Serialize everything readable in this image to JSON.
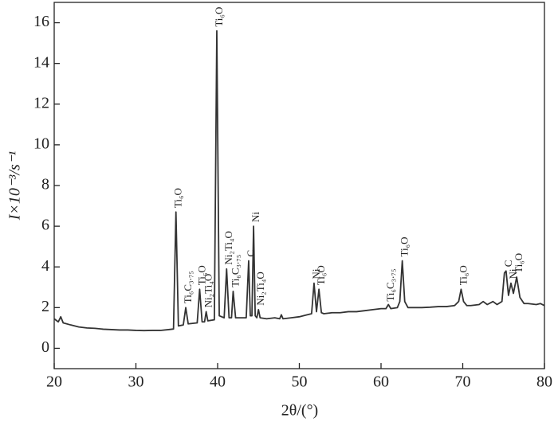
{
  "chart_data": {
    "type": "line",
    "xlabel": "2θ/(°)",
    "ylabel": "I×10⁻³/s⁻¹",
    "x": [
      20,
      20.5,
      20.8,
      21.1,
      22,
      23,
      24,
      25,
      26,
      27,
      28,
      29,
      30,
      31,
      32,
      33,
      34,
      34.6,
      34.9,
      35.2,
      35.8,
      36.1,
      36.4,
      37.5,
      37.8,
      38.1,
      38.4,
      38.6,
      38.8,
      39.6,
      39.9,
      40.2,
      40.8,
      41.1,
      41.4,
      41.7,
      41.9,
      42.2,
      43.5,
      43.8,
      44.0,
      44.2,
      44.4,
      44.6,
      44.8,
      45.0,
      45.2,
      46,
      47,
      47.6,
      47.8,
      48,
      49,
      50,
      51,
      51.5,
      51.8,
      52.1,
      52.4,
      52.7,
      53,
      54,
      55,
      56,
      57,
      58,
      59,
      60,
      60.6,
      60.9,
      61.2,
      62,
      62.3,
      62.6,
      62.9,
      63.3,
      64,
      65,
      66,
      67,
      68,
      69,
      69.5,
      69.8,
      70.1,
      70.5,
      71,
      72,
      72.5,
      73,
      73.7,
      74.2,
      74.8,
      75.1,
      75.3,
      75.6,
      75.9,
      76.2,
      76.6,
      77,
      77.5,
      78,
      79,
      79.5,
      80
    ],
    "values": [
      1.45,
      1.3,
      1.55,
      1.25,
      1.15,
      1.05,
      1.0,
      0.98,
      0.94,
      0.92,
      0.9,
      0.9,
      0.88,
      0.87,
      0.88,
      0.88,
      0.92,
      0.95,
      6.7,
      1.1,
      1.15,
      2.0,
      1.2,
      1.25,
      2.9,
      1.3,
      1.3,
      1.8,
      1.35,
      1.4,
      15.6,
      1.6,
      1.5,
      3.9,
      1.5,
      1.5,
      2.8,
      1.5,
      1.5,
      4.3,
      1.6,
      1.6,
      6.0,
      1.6,
      1.5,
      1.9,
      1.5,
      1.45,
      1.5,
      1.45,
      1.65,
      1.45,
      1.5,
      1.55,
      1.65,
      1.7,
      3.2,
      1.8,
      2.9,
      1.75,
      1.7,
      1.75,
      1.75,
      1.8,
      1.8,
      1.85,
      1.9,
      1.95,
      1.95,
      2.15,
      1.95,
      2.0,
      2.3,
      4.3,
      2.3,
      2.0,
      2.0,
      2.0,
      2.02,
      2.05,
      2.05,
      2.1,
      2.3,
      2.9,
      2.3,
      2.1,
      2.1,
      2.15,
      2.3,
      2.15,
      2.3,
      2.15,
      2.3,
      3.7,
      3.8,
      2.6,
      3.2,
      2.7,
      3.5,
      2.5,
      2.2,
      2.2,
      2.15,
      2.2,
      2.1
    ],
    "color": "#333333",
    "xlim": [
      20,
      80
    ],
    "xticks": [
      20,
      30,
      40,
      50,
      60,
      70,
      80
    ],
    "ylim": [
      -1,
      17
    ],
    "yticks": [
      0,
      2,
      4,
      6,
      8,
      10,
      12,
      14,
      16
    ],
    "annotations": [
      {
        "text": "Ti₆O",
        "x": 34.9,
        "y": 6.9
      },
      {
        "text": "Ti₆C₃.₇₅",
        "x": 36.1,
        "y": 2.2
      },
      {
        "text": "Ti₆O",
        "x": 37.8,
        "y": 3.1
      },
      {
        "text": "Ni₂Ti₄O",
        "x": 38.6,
        "y": 2.0
      },
      {
        "text": "Ti₆O",
        "x": 39.9,
        "y": 15.8
      },
      {
        "text": "Ni₂Ti₄O",
        "x": 41.1,
        "y": 4.1
      },
      {
        "text": "Ti₆C₃.₇₅",
        "x": 41.9,
        "y": 3.0
      },
      {
        "text": "C",
        "x": 43.8,
        "y": 4.5
      },
      {
        "text": "Ni",
        "x": 44.4,
        "y": 6.2
      },
      {
        "text": "Ni₂Ti₄O",
        "x": 45.0,
        "y": 2.1
      },
      {
        "text": "Ni",
        "x": 51.8,
        "y": 3.4
      },
      {
        "text": "Ti₆O",
        "x": 52.4,
        "y": 3.1
      },
      {
        "text": "Ti₆C₃.₇₅",
        "x": 60.9,
        "y": 2.3
      },
      {
        "text": "Ti₆O",
        "x": 62.6,
        "y": 4.5
      },
      {
        "text": "Ti₆O",
        "x": 69.8,
        "y": 3.1
      },
      {
        "text": "C",
        "x": 75.3,
        "y": 4.0
      },
      {
        "text": "Ni",
        "x": 75.9,
        "y": 3.4
      },
      {
        "text": "Ti₆O",
        "x": 76.6,
        "y": 3.7
      }
    ]
  }
}
